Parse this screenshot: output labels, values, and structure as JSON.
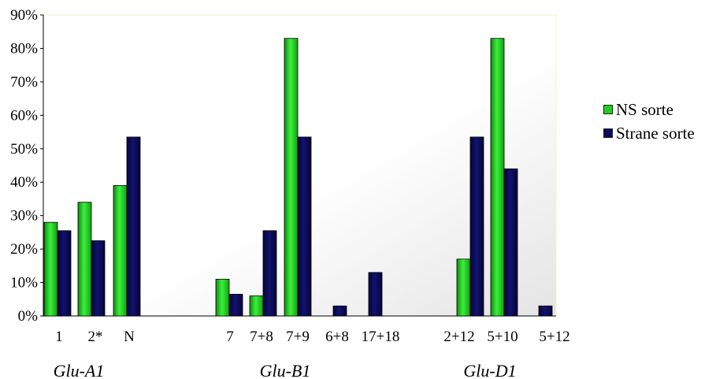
{
  "chart_data": {
    "type": "bar",
    "ylim": [
      0,
      90
    ],
    "y_ticks": [
      "0%",
      "10%",
      "20%",
      "30%",
      "40%",
      "50%",
      "60%",
      "70%",
      "80%",
      "90%"
    ],
    "categories": [
      "1",
      "2*",
      "N",
      "7",
      "7+8",
      "7+9",
      "6+8",
      "17+18",
      "2+12",
      "5+10",
      "5+12"
    ],
    "groups": [
      {
        "label": "Glu-A1",
        "categories": [
          "1",
          "2*",
          "N"
        ]
      },
      {
        "label": "Glu-B1",
        "categories": [
          "7",
          "7+8",
          "7+9",
          "6+8",
          "17+18"
        ]
      },
      {
        "label": "Glu-D1",
        "categories": [
          "2+12",
          "5+10",
          "5+12"
        ]
      }
    ],
    "series": [
      {
        "name": "NS sorte",
        "color": "#1fce1f",
        "values": [
          28,
          34,
          39,
          11,
          6,
          83,
          0,
          0,
          17,
          83,
          0
        ]
      },
      {
        "name": "Strane sorte",
        "color": "#0a0a5c",
        "values": [
          25.5,
          22.5,
          53.5,
          6.5,
          25.5,
          53.5,
          3,
          13,
          53.5,
          44,
          3
        ]
      }
    ],
    "legend_position": "right",
    "grid": false
  }
}
